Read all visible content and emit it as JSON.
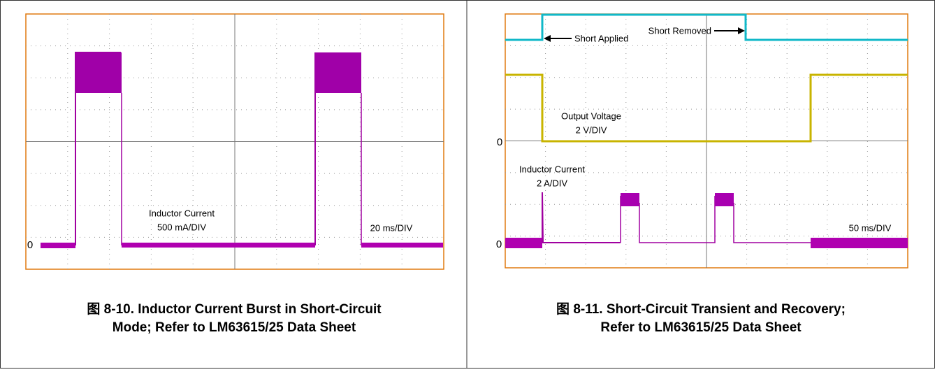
{
  "figures": [
    {
      "labels": {
        "zero": "0",
        "trace_name": "Inductor Current",
        "trace_scale": "500 mA/DIV",
        "time_scale": "20 ms/DIV"
      },
      "caption": [
        "图 8-10. Inductor Current Burst in Short-Circuit",
        "Mode; Refer to LM63615/25 Data Sheet"
      ]
    },
    {
      "labels": {
        "zero_voltage": "0",
        "zero_current": "0",
        "short_applied": "Short Applied",
        "short_removed": "Short Removed",
        "voltage_name": "Output Voltage",
        "voltage_scale": "2 V/DIV",
        "current_name": "Inductor Current",
        "current_scale": "2 A/DIV",
        "time_scale": "50 ms/DIV"
      },
      "caption": [
        "图 8-11. Short-Circuit Transient and Recovery;",
        "Refer to LM63615/25 Data Sheet"
      ]
    }
  ]
}
